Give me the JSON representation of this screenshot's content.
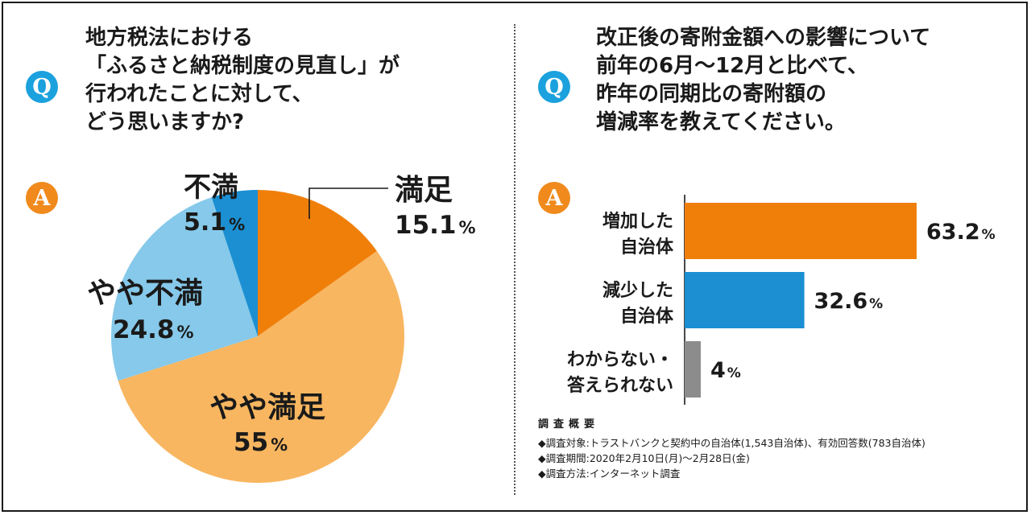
{
  "left": {
    "q_badge": "Q",
    "a_badge": "A",
    "question_lines": [
      "地方税法における",
      "「ふるさと納税制度の見直し」が",
      "行われたことに対して、",
      "どう思いますか?"
    ]
  },
  "right": {
    "q_badge": "Q",
    "a_badge": "A",
    "question_lines": [
      "改正後の寄附金額への影響について",
      "前年の6月〜12月と比べて、",
      "昨年の同期比の寄附額の",
      "増減率を教えてください。"
    ]
  },
  "chart_data": [
    {
      "type": "pie",
      "start_angle_deg": 0,
      "direction": "clockwise",
      "slices": [
        {
          "label": "満足",
          "value": 15.1,
          "value_text": "15.1",
          "unit": "%",
          "color": "#f07f0a"
        },
        {
          "label": "やや満足",
          "value": 55,
          "value_text": "55",
          "unit": "%",
          "color": "#f8b660"
        },
        {
          "label": "やや不満",
          "value": 24.8,
          "value_text": "24.8",
          "unit": "%",
          "color": "#86c9ea"
        },
        {
          "label": "不満",
          "value": 5.1,
          "value_text": "5.1",
          "unit": "%",
          "color": "#1b8fd2"
        }
      ]
    },
    {
      "type": "bar",
      "orientation": "horizontal",
      "unit": "%",
      "bars": [
        {
          "label_lines": [
            "増加した",
            "自治体"
          ],
          "value": 63.2,
          "value_text": "63.2",
          "color": "#f07f0a"
        },
        {
          "label_lines": [
            "減少した",
            "自治体"
          ],
          "value": 32.6,
          "value_text": "32.6",
          "color": "#1b8fd2"
        },
        {
          "label_lines": [
            "わからない・",
            "答えられない"
          ],
          "value": 4,
          "value_text": "4",
          "color": "#8c8c8c"
        }
      ]
    }
  ],
  "survey": {
    "title": "調査概要",
    "lines": [
      "◆調査対象:トラストバンクと契約中の自治体(1,543自治体)、有効回答数(783自治体)",
      "◆調査期間:2020年2月10日(月)〜2月28日(金)",
      "◆調査方法:インターネット調査"
    ]
  },
  "colors": {
    "q_badge": "#1ba1dd",
    "a_badge": "#f08a1c",
    "axis_line": "#1a1a1a"
  }
}
